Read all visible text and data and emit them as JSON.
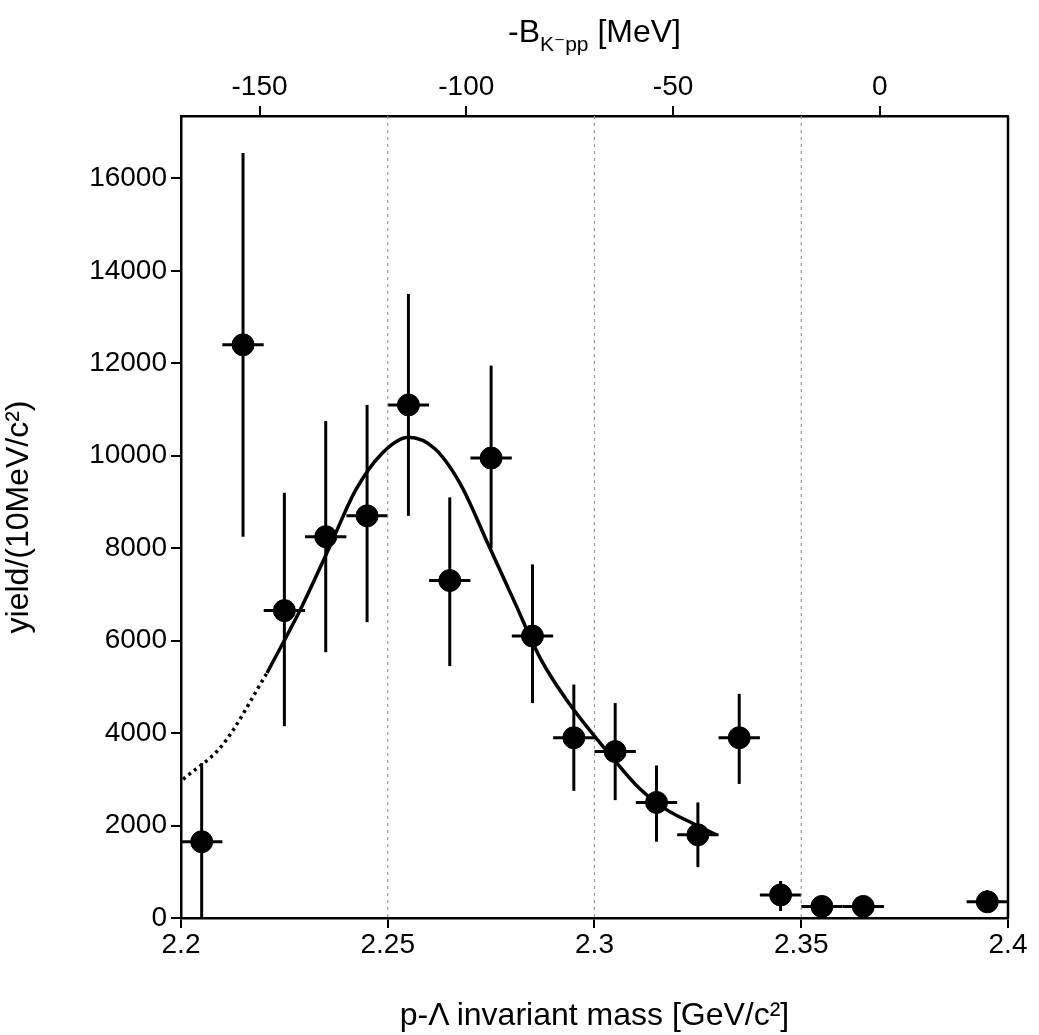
{
  "chart_data": {
    "type": "scatter",
    "xlabel": "p-Λ invariant mass [GeV/c²]",
    "ylabel": "yield/(10MeV/c²)",
    "x2label": "-B$_{K⁻pp}$ [MeV]",
    "xlim": [
      2.2,
      2.4
    ],
    "xticks": [
      2.2,
      2.25,
      2.3,
      2.35,
      2.4
    ],
    "ylim": [
      0,
      17350
    ],
    "yticks": [
      0,
      2000,
      4000,
      6000,
      8000,
      10000,
      12000,
      14000,
      16000
    ],
    "x2lim": [
      -169,
      31
    ],
    "x2ticks": [
      -150,
      -100,
      -50,
      0
    ],
    "ref_lines": [
      {
        "axis": "x",
        "value": 2.25,
        "color": "#999999",
        "line_style": "dotted"
      },
      {
        "axis": "x",
        "value": 2.3,
        "color": "#999999",
        "line_style": "dotted"
      },
      {
        "axis": "x",
        "value": 2.35,
        "color": "#999999",
        "line_style": "dotted"
      }
    ],
    "series": [
      {
        "type": "scatter",
        "color": "#000000",
        "marker": "circle",
        "x": [
          2.205,
          2.215,
          2.225,
          2.235,
          2.245,
          2.255,
          2.265,
          2.275,
          2.285,
          2.295,
          2.305,
          2.315,
          2.325,
          2.335,
          2.345,
          2.355,
          2.365,
          2.395
        ],
        "values": [
          1650,
          12400,
          6650,
          8250,
          8700,
          11100,
          7300,
          9950,
          6100,
          3900,
          3600,
          2500,
          1800,
          3900,
          500,
          250,
          250,
          350
        ],
        "errors": [
          [
            0,
            3350
          ],
          [
            8250,
            16550
          ],
          [
            4150,
            9200
          ],
          [
            5750,
            10750
          ],
          [
            6400,
            11100
          ],
          [
            8700,
            13500
          ],
          [
            5450,
            9100
          ],
          [
            8000,
            11950
          ],
          [
            4650,
            7650
          ],
          [
            2750,
            5050
          ],
          [
            2550,
            4650
          ],
          [
            1650,
            3300
          ],
          [
            1100,
            2500
          ],
          [
            2900,
            4850
          ],
          [
            150,
            800
          ],
          null,
          null,
          [
            150,
            600
          ]
        ],
        "xerrors": [
          0.005,
          0.005,
          0.005,
          0.005,
          0.005,
          0.005,
          0.005,
          0.005,
          0.005,
          0.005,
          0.005,
          0.005,
          0.005,
          0.005,
          0.005,
          0.005,
          0.005,
          0.005
        ]
      },
      {
        "type": "line",
        "color": "#000000",
        "marker": "none",
        "line_style": "dotted",
        "x": [
          2.2005,
          2.2101,
          2.2208
        ],
        "values": [
          3000,
          3750,
          5300
        ]
      },
      {
        "type": "line",
        "color": "#000000",
        "marker": "none",
        "line_style": "solid",
        "x": [
          2.2208,
          2.2293,
          2.2358,
          2.2422,
          2.2486,
          2.255,
          2.2614,
          2.2678,
          2.2742,
          2.2806,
          2.287,
          2.2934,
          2.3045,
          2.3109,
          2.3173,
          2.3237,
          2.3295
        ],
        "values": [
          5300,
          6750,
          8000,
          9250,
          10050,
          10400,
          10150,
          9350,
          8100,
          6850,
          5600,
          4700,
          3450,
          2800,
          2350,
          2050,
          1800
        ]
      }
    ]
  }
}
